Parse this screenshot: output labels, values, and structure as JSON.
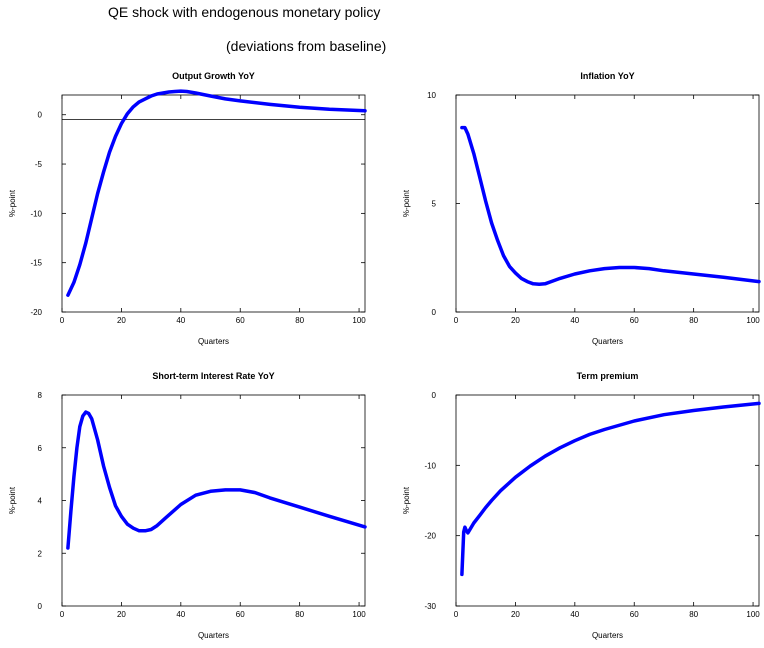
{
  "title": "QE shock with endogenous monetary policy",
  "subtitle": "(deviations from baseline)",
  "chart_data": [
    {
      "type": "line",
      "title": "Output Growth YoY",
      "xlabel": "Quarters",
      "ylabel": "%-point",
      "xlim": [
        0,
        102
      ],
      "ylim": [
        -20,
        2
      ],
      "xticks": [
        0,
        20,
        40,
        60,
        80,
        100
      ],
      "yticks": [
        -20,
        -15,
        -10,
        -5,
        0
      ],
      "hline": -0.5,
      "color": "#0000ff",
      "series": [
        {
          "x": [
            2,
            4,
            6,
            8,
            10,
            12,
            14,
            16,
            18,
            20,
            22,
            24,
            26,
            28,
            30,
            32,
            34,
            36,
            38,
            40,
            42,
            45,
            50,
            55,
            60,
            70,
            80,
            90,
            102
          ],
          "y": [
            -18.3,
            -17,
            -15.2,
            -13,
            -10.5,
            -8,
            -5.8,
            -3.8,
            -2.2,
            -0.9,
            0.1,
            0.8,
            1.3,
            1.6,
            1.9,
            2.1,
            2.2,
            2.3,
            2.35,
            2.4,
            2.35,
            2.2,
            1.9,
            1.6,
            1.4,
            1.05,
            0.75,
            0.55,
            0.4
          ]
        }
      ]
    },
    {
      "type": "line",
      "title": "Inflation YoY",
      "xlabel": "Quarters",
      "ylabel": "%-point",
      "xlim": [
        0,
        102
      ],
      "ylim": [
        0,
        10
      ],
      "xticks": [
        0,
        20,
        40,
        60,
        80,
        100
      ],
      "yticks": [
        0,
        5,
        10
      ],
      "color": "#0000ff",
      "series": [
        {
          "x": [
            2,
            3,
            4,
            6,
            8,
            10,
            12,
            14,
            16,
            18,
            20,
            22,
            24,
            26,
            28,
            30,
            32,
            35,
            40,
            45,
            50,
            55,
            60,
            65,
            70,
            80,
            90,
            102
          ],
          "y": [
            8.5,
            8.5,
            8.2,
            7.3,
            6.2,
            5.1,
            4.1,
            3.3,
            2.6,
            2.1,
            1.8,
            1.55,
            1.4,
            1.3,
            1.28,
            1.3,
            1.4,
            1.55,
            1.75,
            1.9,
            2.0,
            2.05,
            2.05,
            2.0,
            1.9,
            1.75,
            1.6,
            1.4
          ]
        }
      ]
    },
    {
      "type": "line",
      "title": "Short-term Interest Rate YoY",
      "xlabel": "Quarters",
      "ylabel": "%-point",
      "xlim": [
        0,
        102
      ],
      "ylim": [
        0,
        8
      ],
      "xticks": [
        0,
        20,
        40,
        60,
        80,
        100
      ],
      "yticks": [
        0,
        2,
        4,
        6,
        8
      ],
      "color": "#0000ff",
      "series": [
        {
          "x": [
            2,
            3,
            4,
            5,
            6,
            7,
            8,
            9,
            10,
            12,
            14,
            16,
            18,
            20,
            22,
            24,
            26,
            28,
            30,
            32,
            35,
            40,
            45,
            50,
            55,
            60,
            65,
            70,
            80,
            90,
            102
          ],
          "y": [
            2.2,
            3.6,
            4.9,
            6.0,
            6.8,
            7.2,
            7.35,
            7.3,
            7.1,
            6.3,
            5.3,
            4.5,
            3.8,
            3.4,
            3.1,
            2.95,
            2.85,
            2.85,
            2.9,
            3.05,
            3.35,
            3.85,
            4.2,
            4.35,
            4.4,
            4.4,
            4.3,
            4.1,
            3.75,
            3.4,
            3.0
          ]
        }
      ]
    },
    {
      "type": "line",
      "title": "Term premium",
      "xlabel": "Quarters",
      "ylabel": "%-point",
      "xlim": [
        0,
        102
      ],
      "ylim": [
        -30,
        0
      ],
      "xticks": [
        0,
        20,
        40,
        60,
        80,
        100
      ],
      "yticks": [
        -30,
        -20,
        -10,
        0
      ],
      "color": "#0000ff",
      "series": [
        {
          "x": [
            2,
            2.6,
            3,
            3.5,
            4,
            5,
            6,
            8,
            10,
            12,
            15,
            20,
            25,
            30,
            35,
            40,
            45,
            50,
            60,
            70,
            80,
            90,
            102
          ],
          "y": [
            -25.5,
            -19.5,
            -18.8,
            -19.3,
            -19.6,
            -18.9,
            -18.2,
            -17.1,
            -16.0,
            -15.0,
            -13.6,
            -11.7,
            -10.1,
            -8.7,
            -7.5,
            -6.5,
            -5.6,
            -4.9,
            -3.7,
            -2.8,
            -2.2,
            -1.7,
            -1.2
          ]
        }
      ]
    }
  ]
}
